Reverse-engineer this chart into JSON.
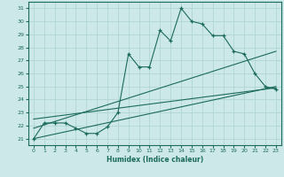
{
  "xlabel": "Humidex (Indice chaleur)",
  "bg_color": "#cde8e8",
  "grid_color": "#b0d4d4",
  "line_color": "#1a6b5a",
  "xlim": [
    -0.5,
    23.5
  ],
  "ylim": [
    20.5,
    31.5
  ],
  "xticks": [
    0,
    1,
    2,
    3,
    4,
    5,
    6,
    7,
    8,
    9,
    10,
    11,
    12,
    13,
    14,
    15,
    16,
    17,
    18,
    19,
    20,
    21,
    22,
    23
  ],
  "yticks": [
    21,
    22,
    23,
    24,
    25,
    26,
    27,
    28,
    29,
    30,
    31
  ],
  "series1_x": [
    0,
    1,
    2,
    3,
    4,
    5,
    6,
    7,
    8,
    9,
    10,
    11,
    12,
    13,
    14,
    15,
    16,
    17,
    18,
    19,
    20,
    21,
    22,
    23
  ],
  "series1_y": [
    21.0,
    22.2,
    22.2,
    22.2,
    21.8,
    21.4,
    21.4,
    21.9,
    23.0,
    27.5,
    26.5,
    26.5,
    29.3,
    28.5,
    31.0,
    30.0,
    29.8,
    28.9,
    28.9,
    27.7,
    27.5,
    26.0,
    25.0,
    24.8
  ],
  "trend1_x": [
    0,
    23
  ],
  "trend1_y": [
    21.0,
    25.0
  ],
  "trend2_x": [
    0,
    23
  ],
  "trend2_y": [
    21.8,
    27.7
  ],
  "trend3_x": [
    0,
    23
  ],
  "trend3_y": [
    22.5,
    24.9
  ]
}
